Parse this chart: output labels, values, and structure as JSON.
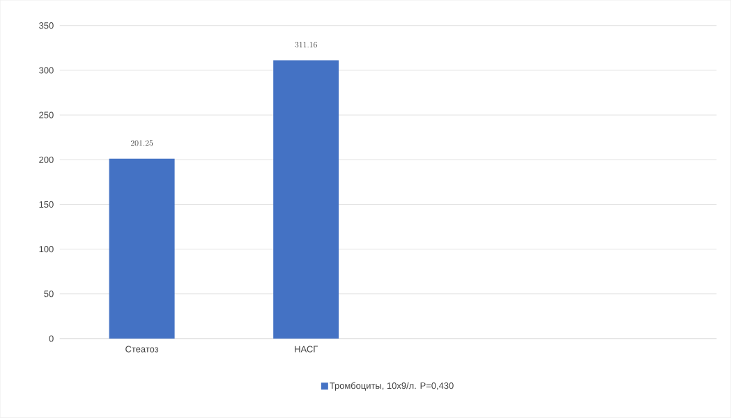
{
  "chart_data": {
    "type": "bar",
    "categories": [
      "Стеатоз",
      "НАСГ",
      null,
      null
    ],
    "series": [
      {
        "name": "Тромбоциты, 10x9/л. P=0,430",
        "color": "#4472c4",
        "values": [
          201.25,
          311.16,
          null,
          null
        ]
      }
    ],
    "ylim": [
      0,
      350
    ],
    "yticks": [
      0,
      50,
      100,
      150,
      200,
      250,
      300,
      350
    ],
    "grid": "y",
    "legend": "bottom",
    "data_labels": true
  }
}
